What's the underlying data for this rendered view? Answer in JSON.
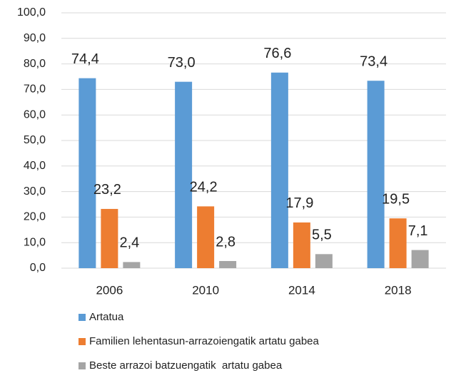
{
  "chart_data": {
    "type": "bar",
    "categories": [
      "2006",
      "2010",
      "2014",
      "2018"
    ],
    "series": [
      {
        "name": "Artatua",
        "color": "#5b9bd5",
        "values": [
          74.4,
          73.0,
          76.6,
          73.4
        ],
        "value_labels": [
          "74,4",
          "73,0",
          "76,6",
          "73,4"
        ]
      },
      {
        "name": "Familien lehentasun-arrazoiengatik artatu gabea",
        "color": "#ed7d31",
        "values": [
          23.2,
          24.2,
          17.9,
          19.5
        ],
        "value_labels": [
          "23,2",
          "24,2",
          "17,9",
          "19,5"
        ]
      },
      {
        "name": "Beste arrazoi batzuengatik  artatu gabea",
        "color": "#a5a5a5",
        "values": [
          2.4,
          2.8,
          5.5,
          7.1
        ],
        "value_labels": [
          "2,4",
          "2,8",
          "5,5",
          "7,1"
        ]
      }
    ],
    "ylim": [
      0,
      100
    ],
    "yticks": [
      {
        "value": 0,
        "label": "0,0"
      },
      {
        "value": 10,
        "label": "10,0"
      },
      {
        "value": 20,
        "label": "20,0"
      },
      {
        "value": 30,
        "label": "30,0"
      },
      {
        "value": 40,
        "label": "40,0"
      },
      {
        "value": 50,
        "label": "50,0"
      },
      {
        "value": 60,
        "label": "60,0"
      },
      {
        "value": 70,
        "label": "70,0"
      },
      {
        "value": 80,
        "label": "80,0"
      },
      {
        "value": 90,
        "label": "90,0"
      },
      {
        "value": 100,
        "label": "100,0"
      }
    ],
    "grid": true,
    "legend": "bottom"
  }
}
